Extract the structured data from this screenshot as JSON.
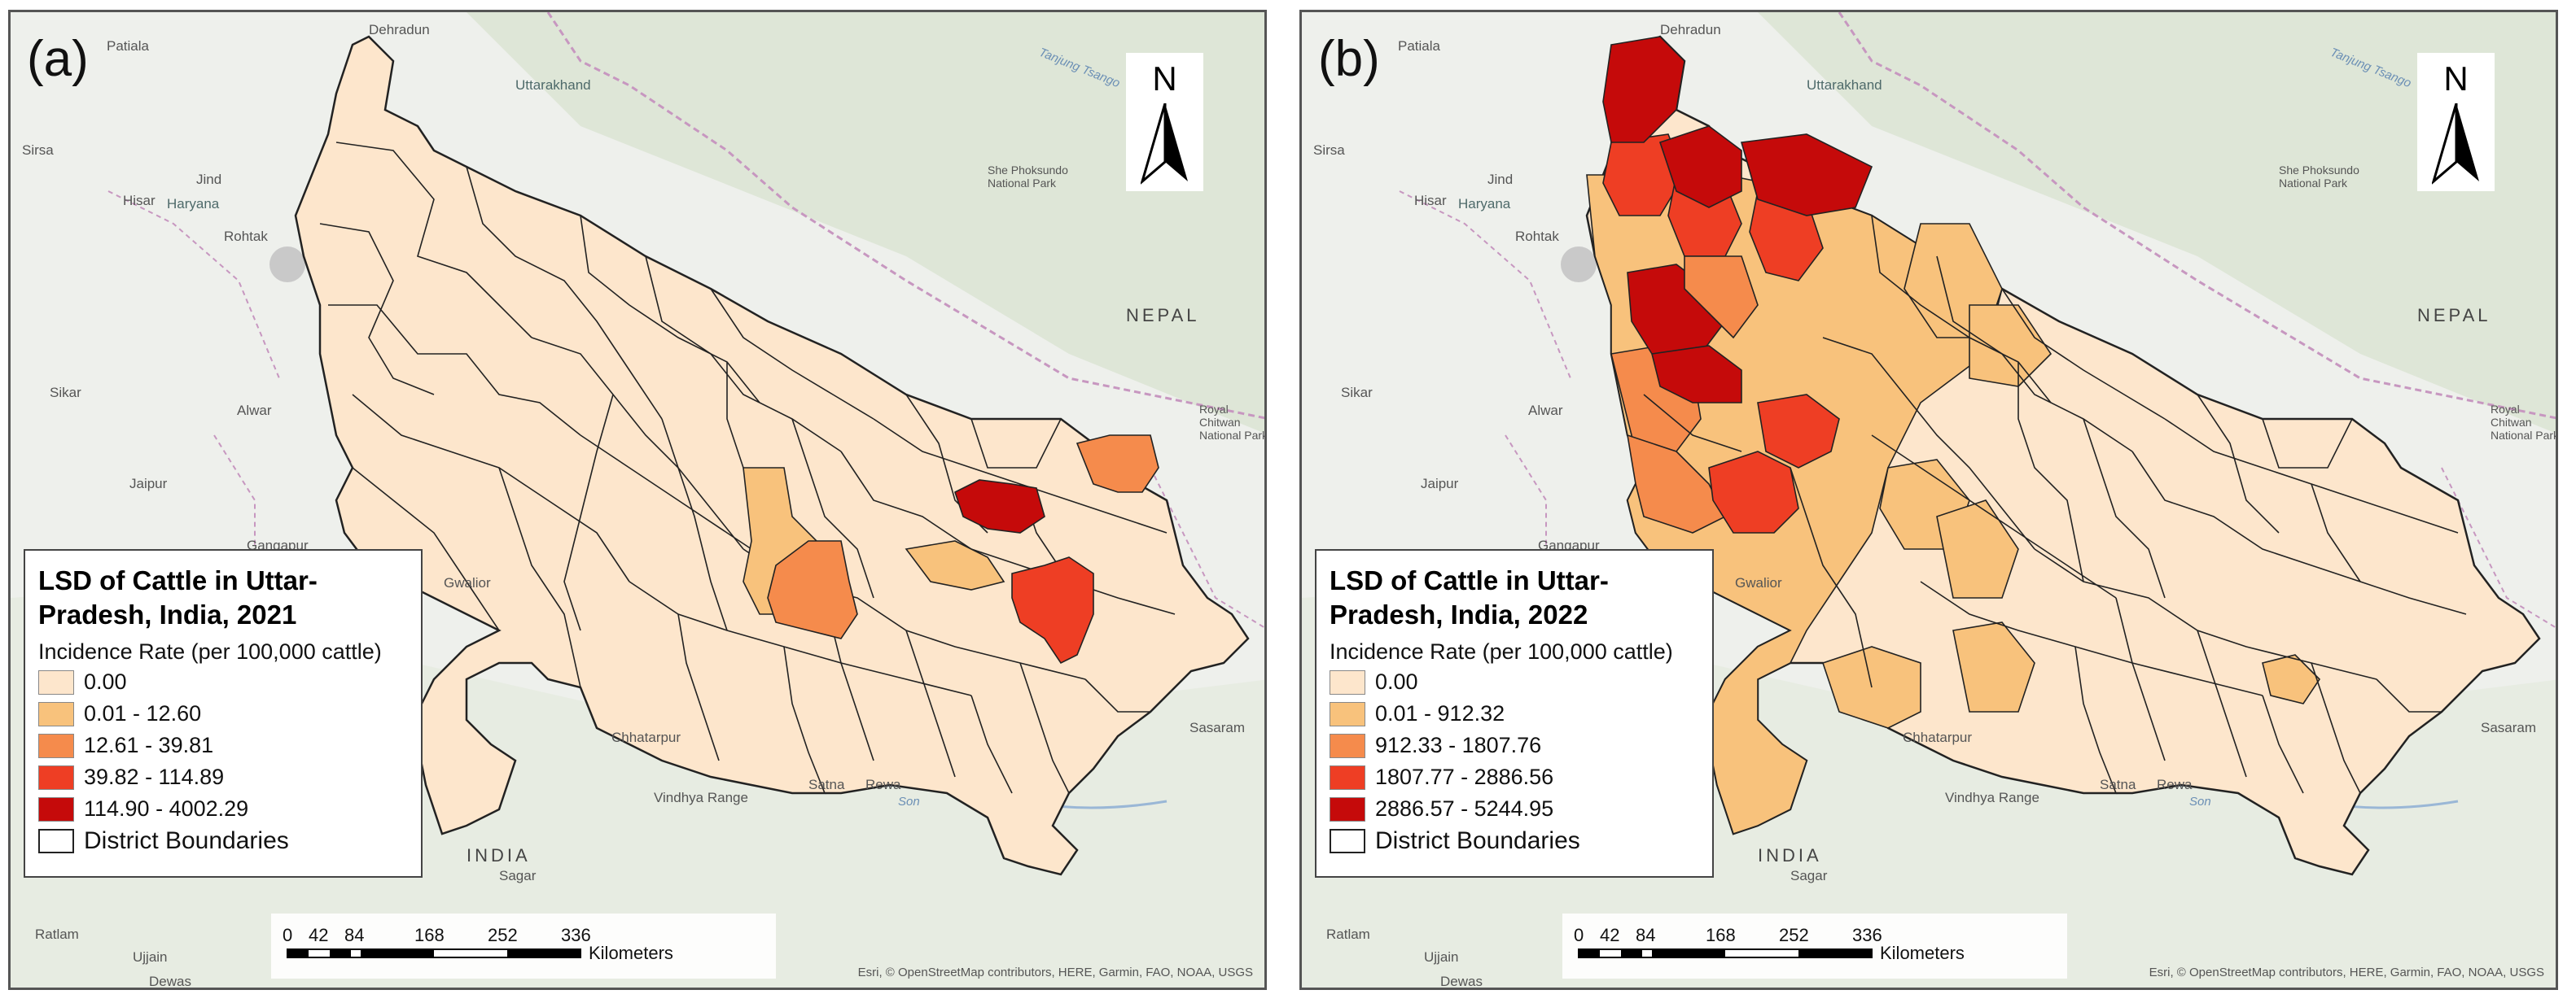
{
  "colors": {
    "class0": "#fde6cc",
    "class1": "#f8c27c",
    "class2": "#f58b4c",
    "class3": "#ee3e24",
    "class4": "#c50a0a",
    "boundary": "#222222",
    "basemap": "#eef0ec",
    "terrain": "#d9e4d2",
    "admin_border": "#c797c0"
  },
  "panels": [
    {
      "id": "a",
      "letter": "(a)",
      "legend": {
        "title": "LSD of Cattle in Uttar-Pradesh, India, 2021",
        "subtitle": "Incidence Rate (per 100,000 cattle)",
        "classes": [
          "0.00",
          "0.01 - 12.60",
          "12.61 - 39.81",
          "39.82 - 114.89",
          "114.90 - 4002.29"
        ],
        "boundary_label": "District Boundaries"
      }
    },
    {
      "id": "b",
      "letter": "(b)",
      "legend": {
        "title": "LSD of Cattle in Uttar-Pradesh, India, 2022",
        "subtitle": "Incidence Rate (per 100,000 cattle)",
        "classes": [
          "0.00",
          "0.01 - 912.32",
          "912.33 - 1807.76",
          "1807.77 - 2886.56",
          "2886.57 - 5244.95"
        ],
        "boundary_label": "District Boundaries"
      }
    }
  ],
  "north_arrow": "N",
  "north_arrow_icon": "north-arrow-icon",
  "scale": {
    "ticks": [
      "0",
      "42",
      "84",
      "168",
      "252",
      "336"
    ],
    "unit": "Kilometers"
  },
  "attribution": "Esri, © OpenStreetMap contributors, HERE, Garmin, FAO, NOAA, USGS",
  "place_labels": {
    "patiala": "Patiala",
    "dehradun": "Dehradun",
    "uttarakhand": "Uttarakhand",
    "sirsa": "Sirsa",
    "jind": "Jind",
    "hisar": "Hisar",
    "haryana": "Haryana",
    "rohtak": "Rohtak",
    "sikar": "Sikar",
    "alwar": "Alwar",
    "jaipur": "Jaipur",
    "gangapur": "Gangapur",
    "gwalior": "Gwalior",
    "chhatarpur": "Chhatarpur",
    "satna": "Satna",
    "rewa": "Rewa",
    "vindhya": "Vindhya Range",
    "sagar": "Sagar",
    "india": "INDIA",
    "ratlam": "Ratlam",
    "ujjain": "Ujjain",
    "dewas": "Dewas",
    "nepal": "NEPAL",
    "she_phoksundo": "She Phoksundo National Park",
    "royal_chitwan": "Royal Chitwan National Park",
    "sasaram": "Sasaram",
    "son": "Son",
    "karnali": "Tanjung Tsango"
  }
}
